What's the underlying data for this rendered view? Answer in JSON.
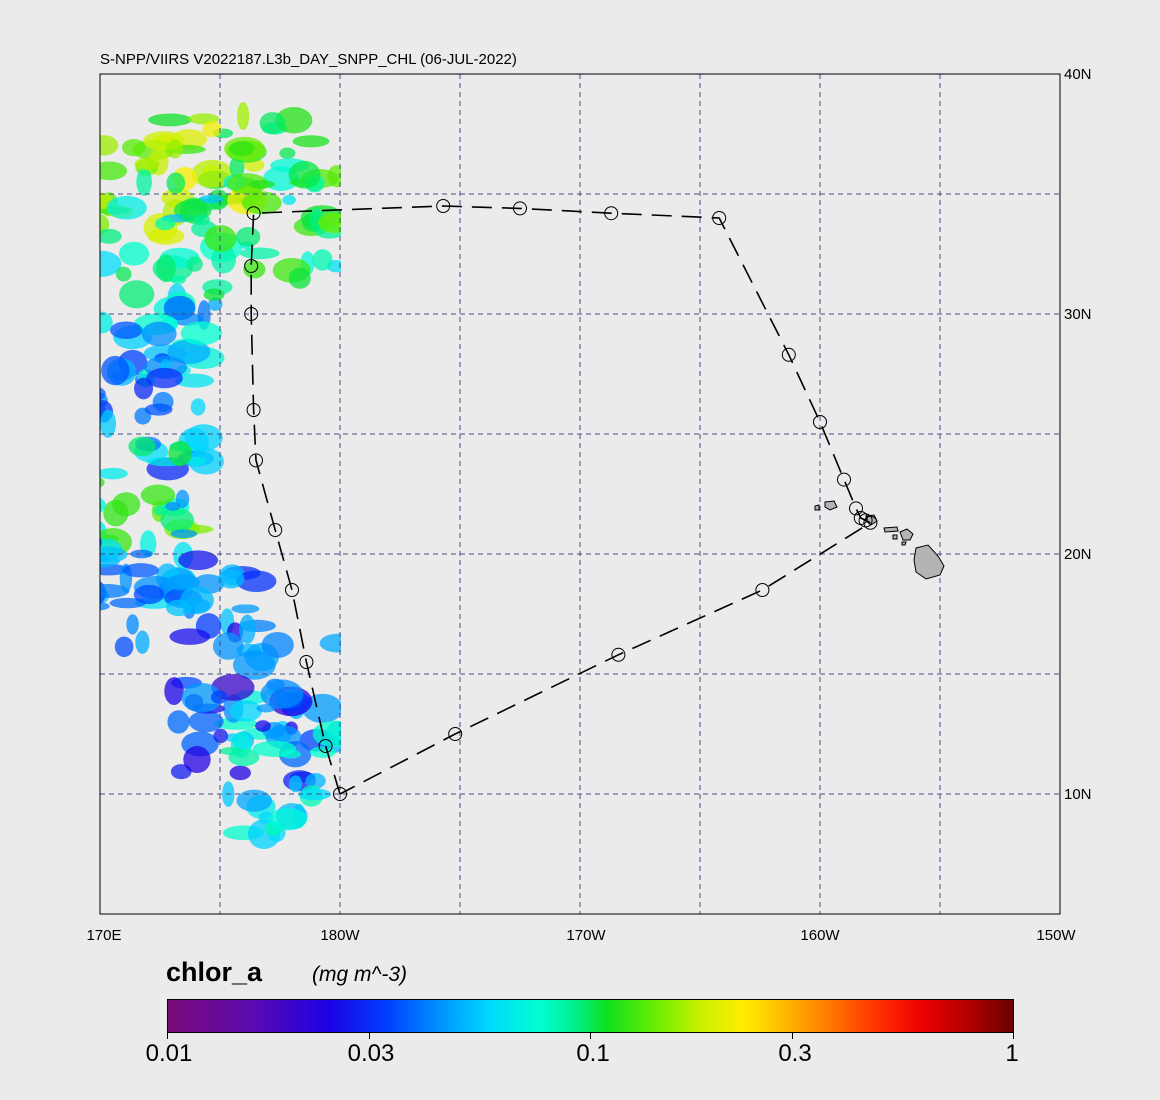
{
  "title": "S-NPP/VIIRS V2022187.L3b_DAY_SNPP_CHL (06-JUL-2022)",
  "lon_labels": [
    "170E",
    "180W",
    "170W",
    "160W",
    "150W"
  ],
  "lat_labels": [
    "40N",
    "30N",
    "20N",
    "10N"
  ],
  "lon_range": [
    170,
    210
  ],
  "lat_range": [
    5,
    40
  ],
  "gridlines": {
    "lon": [
      175,
      180,
      185,
      190,
      195,
      200,
      205
    ],
    "lat": [
      10,
      15,
      20,
      25,
      30,
      35
    ],
    "style": "dashed",
    "color": "#4a4a8a"
  },
  "colorbar": {
    "variable": "chlor_a",
    "units": "(mg m^-3)",
    "scale": "log",
    "range": [
      0.01,
      1
    ],
    "ticks": [
      {
        "value": 0.01,
        "label": "0.01"
      },
      {
        "value": 0.03,
        "label": "0.03"
      },
      {
        "value": 0.1,
        "label": "0.1"
      },
      {
        "value": 0.3,
        "label": "0.3"
      },
      {
        "value": 1,
        "label": "1"
      }
    ]
  },
  "cruise_track": {
    "line_style": "dashed",
    "points": [
      {
        "lat": 10.0,
        "lon": 180.0
      },
      {
        "lat": 12.0,
        "lon": 179.4
      },
      {
        "lat": 15.5,
        "lon": 178.6
      },
      {
        "lat": 18.5,
        "lon": 178.0
      },
      {
        "lat": 21.0,
        "lon": 177.3
      },
      {
        "lat": 23.9,
        "lon": 176.5
      },
      {
        "lat": 26.0,
        "lon": 176.4
      },
      {
        "lat": 30.0,
        "lon": 176.3
      },
      {
        "lat": 32.0,
        "lon": 176.3
      },
      {
        "lat": 34.2,
        "lon": 176.4
      },
      {
        "lat": 34.5,
        "lon": 184.3
      },
      {
        "lat": 34.4,
        "lon": 187.5
      },
      {
        "lat": 34.2,
        "lon": 191.3
      },
      {
        "lat": 34.0,
        "lon": 195.8
      },
      {
        "lat": 28.3,
        "lon": 198.7
      },
      {
        "lat": 25.5,
        "lon": 200.0
      },
      {
        "lat": 23.1,
        "lon": 201.0
      },
      {
        "lat": 21.9,
        "lon": 201.5
      },
      {
        "lat": 21.5,
        "lon": 201.7
      },
      {
        "lat": 21.4,
        "lon": 201.9
      },
      {
        "lat": 21.3,
        "lon": 202.1
      },
      {
        "lat": 18.5,
        "lon": 197.6
      },
      {
        "lat": 15.8,
        "lon": 191.6
      },
      {
        "lat": 12.5,
        "lon": 184.8
      },
      {
        "lat": 10.0,
        "lon": 180.0
      }
    ]
  },
  "land": {
    "fill": "#b4b4b4",
    "features": [
      "hawaiian-islands"
    ]
  },
  "data_regions": [
    {
      "lat": 36.5,
      "lon": 173.5,
      "chl": 0.15
    },
    {
      "lat": 35.5,
      "lon": 170.5,
      "chl": 0.13
    },
    {
      "lat": 32.5,
      "lon": 172.0,
      "chl": 0.07
    },
    {
      "lat": 33.5,
      "lon": 178.0,
      "chl": 0.09
    },
    {
      "lat": 36.0,
      "lon": 178.5,
      "chl": 0.1
    },
    {
      "lat": 28.0,
      "lon": 171.5,
      "chl": 0.05
    },
    {
      "lat": 25.5,
      "lon": 172.5,
      "chl": 0.045
    },
    {
      "lat": 22.5,
      "lon": 171.0,
      "chl": 0.1
    },
    {
      "lat": 20.0,
      "lon": 172.0,
      "chl": 0.04
    },
    {
      "lat": 17.5,
      "lon": 173.5,
      "chl": 0.035
    },
    {
      "lat": 14.0,
      "lon": 178.5,
      "chl": 0.05
    },
    {
      "lat": 12.5,
      "lon": 176.0,
      "chl": 0.03
    },
    {
      "lat": 10.5,
      "lon": 178.0,
      "chl": 0.06
    }
  ]
}
